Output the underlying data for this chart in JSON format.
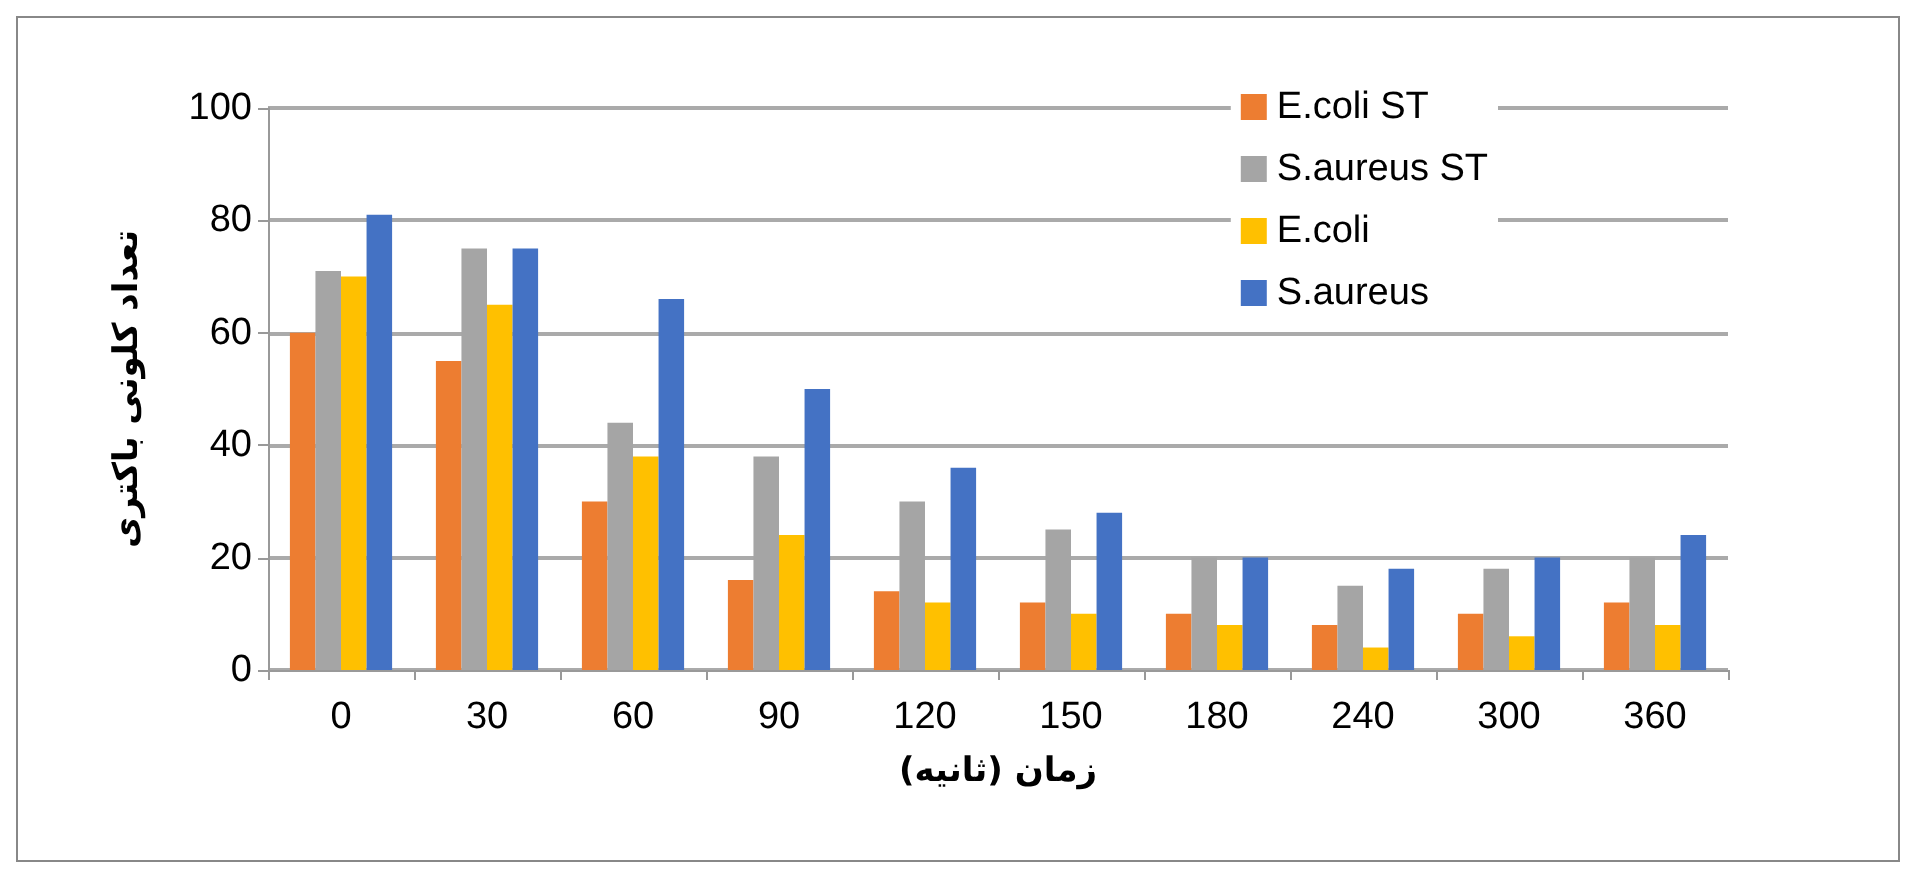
{
  "chart_data": {
    "type": "bar",
    "xlabel": "زمان (ثانیه)",
    "ylabel": "تعداد کلونی باکتری",
    "categories": [
      "0",
      "30",
      "60",
      "90",
      "120",
      "150",
      "180",
      "240",
      "300",
      "360"
    ],
    "series": [
      {
        "name": "E.coli ST",
        "color": "#ed7d31",
        "values": [
          60,
          55,
          30,
          16,
          14,
          12,
          10,
          8,
          10,
          12
        ]
      },
      {
        "name": "S.aureus ST",
        "color": "#a5a5a5",
        "values": [
          71,
          75,
          44,
          38,
          30,
          25,
          20,
          15,
          18,
          20
        ]
      },
      {
        "name": "E.coli",
        "color": "#ffc000",
        "values": [
          70,
          65,
          38,
          24,
          12,
          10,
          8,
          4,
          6,
          8
        ]
      },
      {
        "name": "S.aureus",
        "color": "#4472c4",
        "values": [
          81,
          75,
          66,
          50,
          36,
          28,
          20,
          18,
          20,
          24
        ]
      }
    ],
    "ylim": [
      0,
      100
    ],
    "yticks": [
      0,
      20,
      40,
      60,
      80,
      100
    ],
    "grid": "y",
    "legend": "top right"
  }
}
